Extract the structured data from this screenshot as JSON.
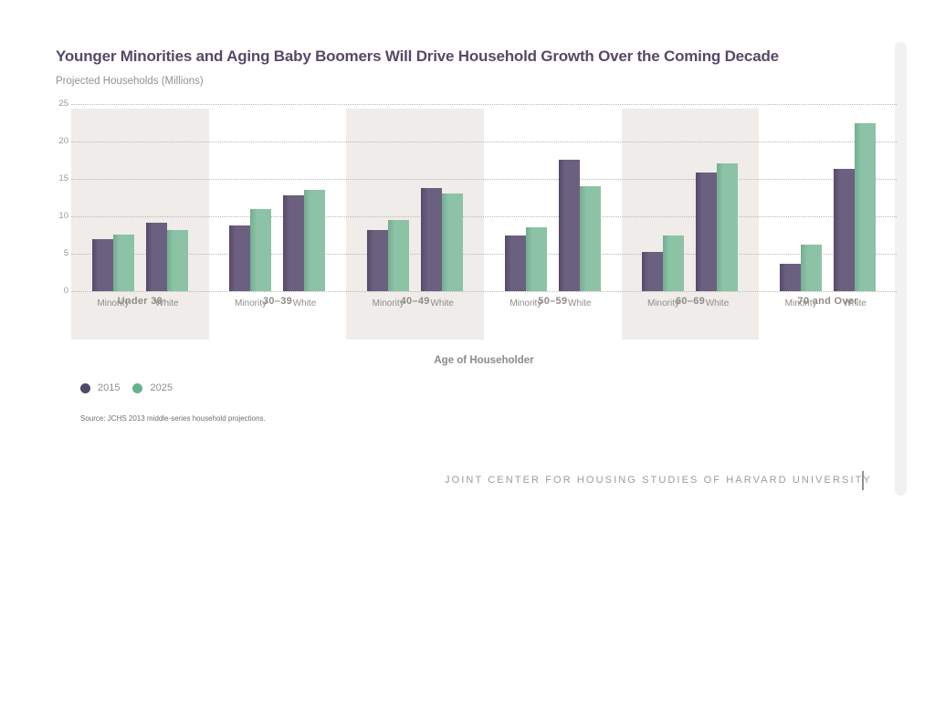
{
  "chart_data": {
    "type": "bar",
    "title": "Younger Minorities and Aging Baby Boomers Will Drive Household Growth Over the Coming Decade",
    "units_label": "Projected Households (Millions)",
    "ylabel": "Projected Households (Millions)",
    "xlabel": "Age of Householder",
    "ylim": [
      0,
      25
    ],
    "yticks": [
      25,
      20,
      15,
      10,
      5,
      0
    ],
    "grid": "horizontal-dotted",
    "legend_position": "bottom-left",
    "series": [
      {
        "name": "2015",
        "color": "#6c6080",
        "color_dark": "#57496a",
        "legend_color": "#524868"
      },
      {
        "name": "2025",
        "color": "#8cc3a6",
        "color_dark": "#74ad90",
        "legend_color": "#65b28e"
      }
    ],
    "categories": [
      "Under 30",
      "30–39",
      "40–49",
      "50–59",
      "60–69",
      "70 and Over"
    ],
    "groups": [
      {
        "age": "Under 30",
        "subgroups": [
          {
            "label": "Minority",
            "values": [
              7.0,
              7.6
            ]
          },
          {
            "label": "White",
            "values": [
              9.1,
              8.2
            ]
          }
        ]
      },
      {
        "age": "30–39",
        "subgroups": [
          {
            "label": "Minority",
            "values": [
              8.8,
              11.0
            ]
          },
          {
            "label": "White",
            "values": [
              12.8,
              13.5
            ]
          }
        ]
      },
      {
        "age": "40–49",
        "subgroups": [
          {
            "label": "Minority",
            "values": [
              8.2,
              9.5
            ]
          },
          {
            "label": "White",
            "values": [
              13.8,
              13.1
            ]
          }
        ]
      },
      {
        "age": "50–59",
        "subgroups": [
          {
            "label": "Minority",
            "values": [
              7.4,
              8.5
            ]
          },
          {
            "label": "White",
            "values": [
              17.5,
              14.0
            ]
          }
        ]
      },
      {
        "age": "60–69",
        "subgroups": [
          {
            "label": "Minority",
            "values": [
              5.3,
              7.4
            ]
          },
          {
            "label": "White",
            "values": [
              15.8,
              17.1
            ]
          }
        ]
      },
      {
        "age": "70 and Over",
        "subgroups": [
          {
            "label": "Minority",
            "values": [
              3.7,
              6.2
            ]
          },
          {
            "label": "White",
            "values": [
              16.4,
              22.4
            ]
          }
        ]
      }
    ],
    "source": "Source: JCHS 2013 middle-series household projections.",
    "band_shaded_color": "#efece9",
    "title_color": "#574968"
  },
  "footer": {
    "org": "JOINT CENTER FOR HOUSING STUDIES OF HARVARD UNIVERSITY"
  }
}
